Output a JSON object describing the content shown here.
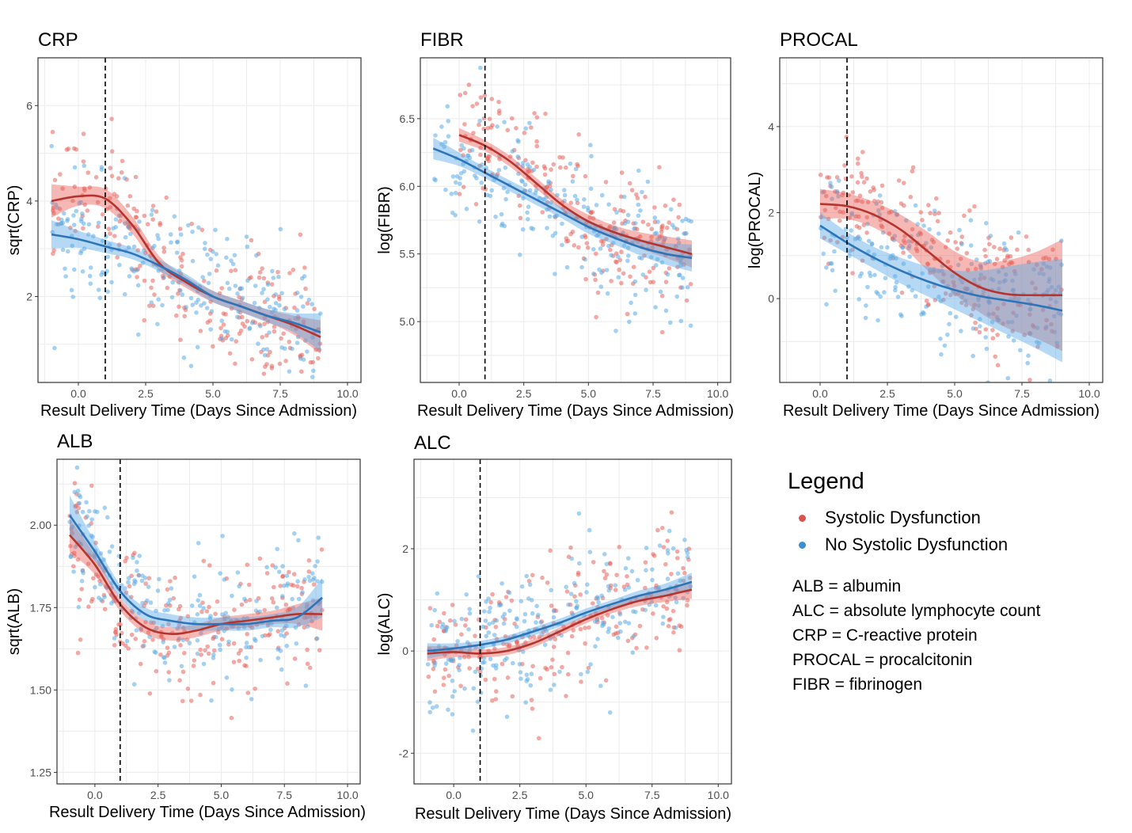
{
  "legend": {
    "title": "Legend",
    "items": [
      {
        "label": "Systolic Dysfunction",
        "color": "#d9534f"
      },
      {
        "label": "No Systolic Dysfunction",
        "color": "#3b8fd1"
      }
    ],
    "abbreviations": [
      "ALB = albumin",
      "ALC = absolute lymphocyte count",
      "CRP = C-reactive protein",
      "PROCAL = procalcitonin",
      "FIBR = fibrinogen"
    ]
  },
  "colors": {
    "systolic_line": "#b5342e",
    "systolic_band": "#e8615a",
    "no_systolic_line": "#2d74b8",
    "no_systolic_band": "#5aabe6",
    "panel_border": "#333333",
    "grid": "#ebebeb"
  },
  "chart_data": [
    {
      "type": "scatter",
      "title": "CRP",
      "xlabel": "Result Delivery Time (Days Since Admission)",
      "ylabel": "sqrt(CRP)",
      "xlim": [
        -1.5,
        10.5
      ],
      "ylim": [
        0.2,
        7.0
      ],
      "xticks": [
        0.0,
        2.5,
        5.0,
        7.5,
        10.0
      ],
      "xtick_labels": [
        "0.0",
        "2.5",
        "5.0",
        "7.5",
        "10.0"
      ],
      "yticks": [
        2,
        4,
        6
      ],
      "ytick_labels": [
        "2",
        "4",
        "6"
      ],
      "vline_x": 1,
      "grid": true,
      "series": [
        {
          "name": "Systolic Dysfunction",
          "x": [
            -1,
            0,
            1,
            2,
            3,
            4,
            5,
            6,
            7,
            8,
            9
          ],
          "y": [
            4.0,
            4.1,
            4.05,
            3.5,
            2.7,
            2.3,
            2.0,
            1.8,
            1.6,
            1.4,
            1.15
          ],
          "band": [
            0.35,
            0.2,
            0.2,
            0.18,
            0.15,
            0.12,
            0.12,
            0.12,
            0.13,
            0.2,
            0.35
          ]
        },
        {
          "name": "No Systolic Dysfunction",
          "x": [
            -1,
            0,
            1,
            2,
            3,
            4,
            5,
            6,
            7,
            8,
            9
          ],
          "y": [
            3.3,
            3.2,
            3.05,
            2.9,
            2.65,
            2.35,
            2.0,
            1.8,
            1.6,
            1.45,
            1.25
          ],
          "band": [
            0.3,
            0.18,
            0.14,
            0.12,
            0.12,
            0.12,
            0.12,
            0.12,
            0.14,
            0.2,
            0.4
          ]
        }
      ]
    },
    {
      "type": "scatter",
      "title": "FIBR",
      "xlabel": "Result Delivery Time (Days Since Admission)",
      "ylabel": "log(FIBR)",
      "xlim": [
        -1.5,
        10.5
      ],
      "ylim": [
        4.55,
        6.95
      ],
      "xticks": [
        0.0,
        2.5,
        5.0,
        7.5,
        10.0
      ],
      "xtick_labels": [
        "0.0",
        "2.5",
        "5.0",
        "7.5",
        "10.0"
      ],
      "yticks": [
        5.0,
        5.5,
        6.0,
        6.5
      ],
      "ytick_labels": [
        "5.0",
        "5.5",
        "6.0",
        "6.5"
      ],
      "vline_x": 1,
      "grid": true,
      "series": [
        {
          "name": "Systolic Dysfunction",
          "x": [
            0,
            1,
            2,
            3,
            4,
            5,
            6,
            7,
            8,
            9
          ],
          "y": [
            6.38,
            6.3,
            6.18,
            6.02,
            5.86,
            5.74,
            5.66,
            5.6,
            5.55,
            5.5
          ],
          "band": [
            0.05,
            0.04,
            0.04,
            0.04,
            0.04,
            0.05,
            0.05,
            0.06,
            0.08,
            0.1
          ]
        },
        {
          "name": "No Systolic Dysfunction",
          "x": [
            -1,
            0,
            1,
            2,
            3,
            4,
            5,
            6,
            7,
            8,
            9
          ],
          "y": [
            6.28,
            6.2,
            6.1,
            6.0,
            5.9,
            5.8,
            5.7,
            5.62,
            5.55,
            5.5,
            5.47
          ],
          "band": [
            0.08,
            0.05,
            0.04,
            0.04,
            0.04,
            0.04,
            0.05,
            0.05,
            0.06,
            0.08,
            0.1
          ]
        }
      ]
    },
    {
      "type": "scatter",
      "title": "PROCAL",
      "xlabel": "Result Delivery Time (Days Since Admission)",
      "ylabel": "log(PROCAL)",
      "xlim": [
        -1.5,
        10.5
      ],
      "ylim": [
        -1.95,
        5.6
      ],
      "xticks": [
        0.0,
        2.5,
        5.0,
        7.5,
        10.0
      ],
      "xtick_labels": [
        "0.0",
        "2.5",
        "5.0",
        "7.5",
        "10.0"
      ],
      "yticks": [
        0,
        2,
        4
      ],
      "ytick_labels": [
        "0",
        "2",
        "4"
      ],
      "vline_x": 1,
      "grid": true,
      "series": [
        {
          "name": "Systolic Dysfunction",
          "x": [
            0,
            1,
            2,
            3,
            4,
            5,
            6,
            7,
            8,
            9
          ],
          "y": [
            2.2,
            2.15,
            1.95,
            1.6,
            1.1,
            0.6,
            0.25,
            0.1,
            0.08,
            0.08
          ],
          "band": [
            0.35,
            0.3,
            0.3,
            0.35,
            0.45,
            0.5,
            0.6,
            0.8,
            1.0,
            1.3
          ]
        },
        {
          "name": "No Systolic Dysfunction",
          "x": [
            0,
            1,
            2,
            3,
            4,
            5,
            6,
            7,
            8,
            9
          ],
          "y": [
            1.7,
            1.3,
            0.95,
            0.65,
            0.4,
            0.2,
            0.05,
            -0.05,
            -0.15,
            -0.28
          ],
          "band": [
            0.3,
            0.25,
            0.25,
            0.3,
            0.35,
            0.45,
            0.6,
            0.8,
            1.0,
            1.2
          ]
        }
      ]
    },
    {
      "type": "scatter",
      "title": "ALB",
      "xlabel": "Result Delivery Time (Days Since Admission)",
      "ylabel": "sqrt(ALB)",
      "xlim": [
        -1.5,
        10.5
      ],
      "ylim": [
        1.215,
        2.2
      ],
      "xticks": [
        0.0,
        2.5,
        5.0,
        7.5,
        10.0
      ],
      "xtick_labels": [
        "0.0",
        "2.5",
        "5.0",
        "7.5",
        "10.0"
      ],
      "yticks": [
        1.25,
        1.5,
        1.75,
        2.0
      ],
      "ytick_labels": [
        "1.25",
        "1.50",
        "1.75",
        "2.00"
      ],
      "vline_x": 1,
      "grid": true,
      "series": [
        {
          "name": "Systolic Dysfunction",
          "x": [
            -1,
            0,
            1,
            2,
            3,
            4,
            5,
            6,
            7,
            8,
            9
          ],
          "y": [
            1.97,
            1.88,
            1.76,
            1.69,
            1.67,
            1.68,
            1.7,
            1.71,
            1.72,
            1.73,
            1.73
          ],
          "band": [
            0.05,
            0.03,
            0.02,
            0.02,
            0.02,
            0.02,
            0.02,
            0.02,
            0.02,
            0.03,
            0.05
          ]
        },
        {
          "name": "No Systolic Dysfunction",
          "x": [
            -1,
            0,
            1,
            2,
            3,
            4,
            5,
            6,
            7,
            8,
            9
          ],
          "y": [
            2.03,
            1.92,
            1.8,
            1.73,
            1.71,
            1.7,
            1.7,
            1.7,
            1.71,
            1.72,
            1.78
          ],
          "band": [
            0.06,
            0.03,
            0.02,
            0.02,
            0.02,
            0.02,
            0.02,
            0.02,
            0.02,
            0.03,
            0.06
          ]
        }
      ]
    },
    {
      "type": "scatter",
      "title": "ALC",
      "xlabel": "Result Delivery Time (Days Since Admission)",
      "ylabel": "log(ALC)",
      "xlim": [
        -1.5,
        10.5
      ],
      "ylim": [
        -2.6,
        3.75
      ],
      "xticks": [
        0.0,
        2.5,
        5.0,
        7.5,
        10.0
      ],
      "xtick_labels": [
        "0.0",
        "2.5",
        "5.0",
        "7.5",
        "10.0"
      ],
      "yticks": [
        -2,
        0,
        2
      ],
      "ytick_labels": [
        "-2",
        "0",
        "2"
      ],
      "vline_x": 1,
      "grid": true,
      "series": [
        {
          "name": "Systolic Dysfunction",
          "x": [
            -1,
            0,
            1,
            2,
            3,
            4,
            5,
            6,
            7,
            8,
            9
          ],
          "y": [
            -0.05,
            -0.02,
            -0.05,
            0.0,
            0.15,
            0.38,
            0.62,
            0.82,
            0.98,
            1.08,
            1.2
          ],
          "band": [
            0.15,
            0.1,
            0.08,
            0.08,
            0.08,
            0.08,
            0.08,
            0.08,
            0.1,
            0.12,
            0.18
          ]
        },
        {
          "name": "No Systolic Dysfunction",
          "x": [
            -1,
            0,
            1,
            2,
            3,
            4,
            5,
            6,
            7,
            8,
            9
          ],
          "y": [
            0.0,
            0.05,
            0.12,
            0.22,
            0.38,
            0.55,
            0.75,
            0.92,
            1.08,
            1.2,
            1.35
          ],
          "band": [
            0.15,
            0.1,
            0.08,
            0.08,
            0.08,
            0.08,
            0.08,
            0.08,
            0.1,
            0.12,
            0.18
          ]
        }
      ]
    }
  ]
}
